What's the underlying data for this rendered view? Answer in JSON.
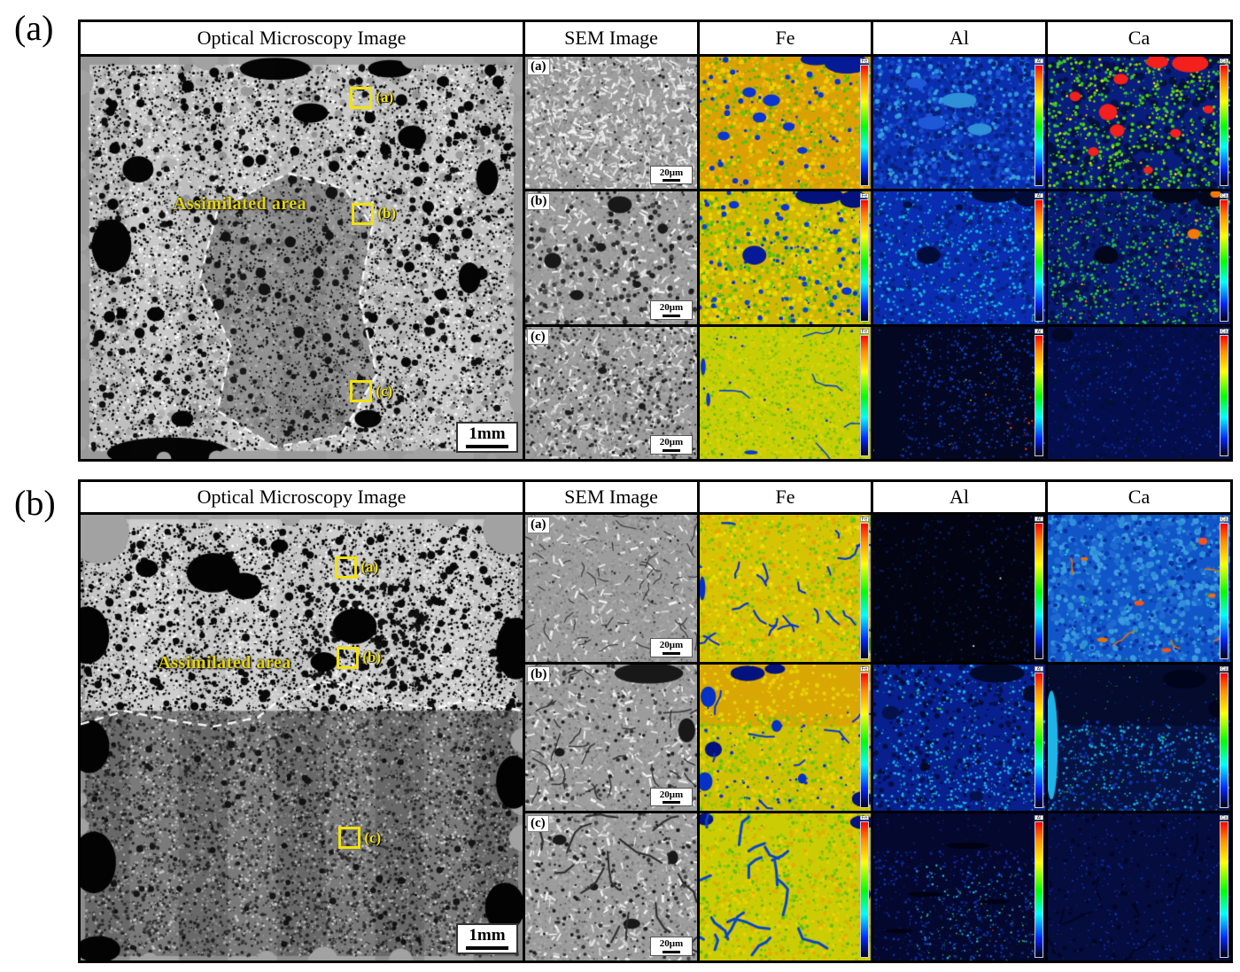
{
  "figure": {
    "colors": {
      "marker_yellow": "#f2e20a",
      "annotation_yellow": "#e6d40a",
      "colorbar_top": "#ff0000",
      "colorbar_bottom": "#000014"
    },
    "panels": [
      {
        "label": "(a)",
        "column_headers": [
          "Optical Microscopy Image",
          "SEM Image",
          "Fe",
          "Al",
          "Ca"
        ],
        "optical": {
          "annotation": "Assimilated area",
          "markers": [
            "(a)",
            "(b)",
            "(c)"
          ],
          "scale_bar": "1mm"
        },
        "rows": [
          {
            "label": "(a)",
            "scale_bar": "20μm",
            "colorbars": [
              "Fe",
              "Al",
              "Ca"
            ]
          },
          {
            "label": "(b)",
            "scale_bar": "20μm",
            "colorbars": [
              "Fe",
              "Al",
              "Ca"
            ]
          },
          {
            "label": "(c)",
            "scale_bar": "20μm",
            "colorbars": [
              "Fe",
              "Al",
              "Ca"
            ]
          }
        ]
      },
      {
        "label": "(b)",
        "column_headers": [
          "Optical Microscopy Image",
          "SEM Image",
          "Fe",
          "Al",
          "Ca"
        ],
        "optical": {
          "annotation": "Assimilated area",
          "markers": [
            "(a)",
            "(b)",
            "(c)"
          ],
          "scale_bar": "1mm"
        },
        "rows": [
          {
            "label": "(a)",
            "scale_bar": "20μm",
            "colorbars": [
              "Fe",
              "Al",
              "Ca"
            ]
          },
          {
            "label": "(b)",
            "scale_bar": "20μm",
            "colorbars": [
              "Fe",
              "Al",
              "Ca"
            ]
          },
          {
            "label": "(c)",
            "scale_bar": "20μm",
            "colorbars": [
              "Fe",
              "Al",
              "Ca"
            ]
          }
        ]
      }
    ]
  }
}
